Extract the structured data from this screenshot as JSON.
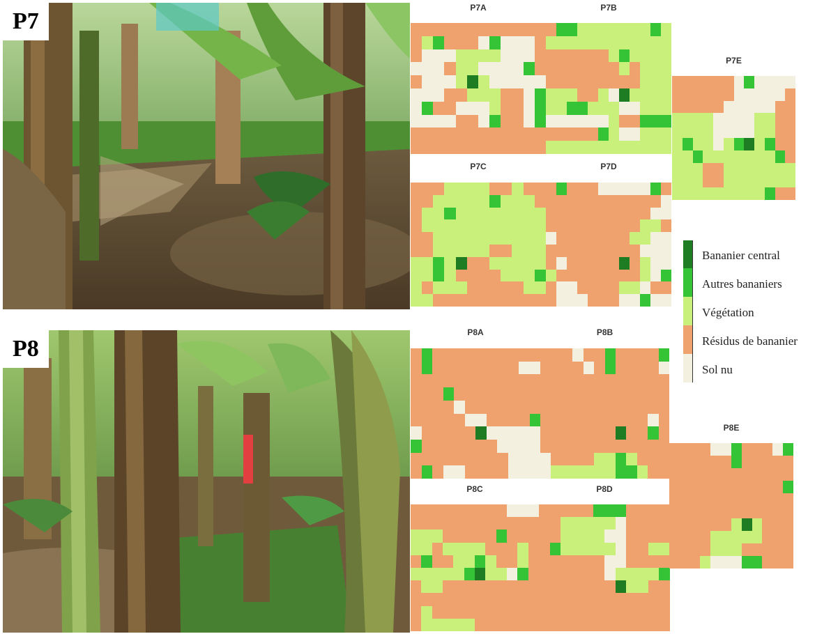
{
  "colors": {
    "Bananier central": "#1e7d22",
    "Autres bananiers": "#35c435",
    "Végétation": "#c8f07a",
    "Résidus de bananier": "#f0a26e",
    "Sol nu": "#f3f0df"
  },
  "photos": [
    {
      "label": "P7"
    },
    {
      "label": "P8"
    }
  ],
  "legend": [
    "Bananier central",
    "Autres bananiers",
    "Végétation",
    "Résidus de bananier",
    "Sol nu"
  ],
  "maps": [
    {
      "title": "P7A",
      "grid": [
        "RRRRRRRRRRRR",
        "RVARRRSASSSR",
        "RSSSVVVVSSSR",
        "SSSRVVSSSSAR",
        "RSSSVCVSSSSS",
        "SSSRRVVVRRSA",
        "SARRSSSVRRSA",
        "SSSSRRSARRSA",
        "RRRRRRRRRRRR",
        "RRRRRRRRRRRR"
      ]
    },
    {
      "title": "P7B",
      "grid": [
        "RAAVVVVVVVAV",
        "VVVVVVVVVVVV",
        "RRRRRRVAVVVV",
        "RRRRRRRVRVVV",
        "RRRRRRRRRVVV",
        "VVVRRVSCVVVV",
        "VVAAVVVSSVVV",
        "SSSSSSVRRAAA",
        "RRRRRAVSSVVV",
        "VVVVVVVVVVVV"
      ]
    },
    {
      "title": "P7C",
      "grid": [
        "RRRVVVVRRVRR",
        "RRVVVVVAVVVR",
        "RVVAVVVVVVVV",
        "RVVVVVVVVVVV",
        "RRVVVVVVVVVV",
        "RRVVVVVRRVVV",
        "VVAVCRRVVVVV",
        "VVAVRRRRVVVA",
        "VRVVVRRRRRVV",
        "VVRRRRRRRRRR"
      ]
    },
    {
      "title": "P7D",
      "grid": [
        "RARRRSSSSSAR",
        "RRRRRRRRRRRS",
        "RRRRRRRRRRSS",
        "RRRRRRRRRVVR",
        "SRRRRRRRVVSS",
        "RRRRRRRRRSSS",
        "RSRRRRRCRVSS",
        "VRRRRRRRRVSA",
        "RSSRRRRVVSRR",
        "RSSSRRRSSASS"
      ]
    },
    {
      "title": "P7E",
      "grid": [
        "RRRRRRSASSSS",
        "RRRRRRSSSSSR",
        "RRRRRSSSSSRR",
        "VVVVSSSSVVRR",
        "VVVVSSSSVVRR",
        "VAVVSVACVARR",
        "VVAVVVVVVVAR",
        "VVVRRVVVVVVV",
        "VVVRRVVVVVVV",
        "VVVVVVVVVARR"
      ]
    },
    {
      "title": "P8A",
      "grid": [
        "RARRRRRRRRRR",
        "RARRRRRRRRSS",
        "RRRRRRRRRRRR",
        "RRRARRRRRRRR",
        "RRRRSRRRRRRR",
        "RRRRRSSRRRRA",
        "SRRRRRCSSSSS",
        "ARRRRRRRSSSS",
        "RRRRRRRRRSSS",
        "RARSSRRRRSSS"
      ]
    },
    {
      "title": "P8B",
      "grid": [
        "RRRSRRARRRRA",
        "RRRRSRARRRRS",
        "RRRRRRRRRRRR",
        "RRRRRRRRRRRR",
        "RRRRRRRRRRRR",
        "RRRRRRRRRRSR",
        "RRRRRRRCRRAR",
        "RRRRRRRRRRRR",
        "SRRRRVVAVRRR",
        "SVVVVVVAAVRR"
      ]
    },
    {
      "title": "P8C",
      "grid": [
        "RRRRRRRRRSSS",
        "RRRRRRRRRRRR",
        "VVVRRRRRARRR",
        "VVRVVVVRRRVR",
        "RARRVVAVRRVR",
        "VVVVVACVVSAR",
        "RVVRRRRRRRRR",
        "RRRRRRRRRRRR",
        "RVRRRRRRRRRR",
        "RVVVVVRRRRRR"
      ]
    },
    {
      "title": "P8D",
      "grid": [
        "RRRRRAAARRRR",
        "RRVVVVVSRRRR",
        "RRVVVVSSRRRR",
        "RAVVVVVSRRVV",
        "RRRRRRSSRRRR",
        "RRRRRRSVVVVA",
        "RRRRRRRCVVRR",
        "RRRRRRRRRRRR",
        "RRRRRRRRRRRR",
        "RRRRRRRRRRRR"
      ]
    },
    {
      "title": "P8E",
      "grid": [
        "RRRRSSARRRSA",
        "RRRRRRARRRRR",
        "RRRRRRRRRRRR",
        "RRRRRRRRRRRA",
        "RRRRRRRRRRRR",
        "RRRRRRRRRRRR",
        "RRRRRRVCVRRR",
        "RRRRVVVVVRRR",
        "RRRRVVVRRRRR",
        "RRRVSSSAARRR"
      ]
    }
  ]
}
